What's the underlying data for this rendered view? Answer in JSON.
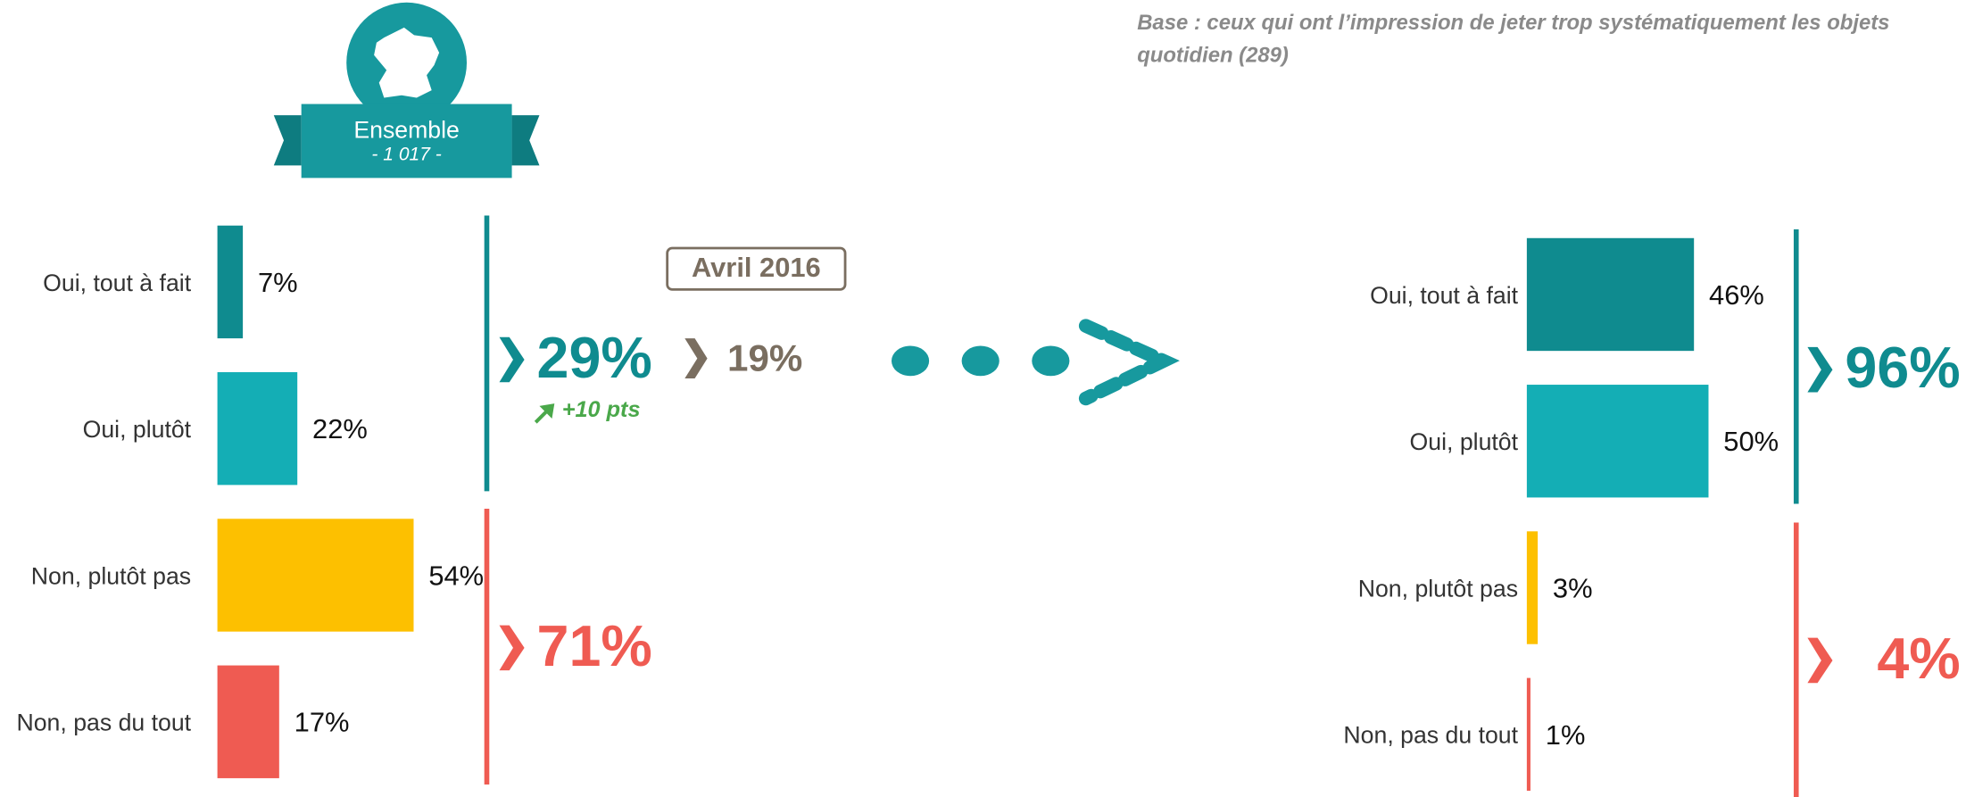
{
  "header": {
    "title": "Ensemble",
    "subtitle": "- 1 017 -"
  },
  "note": {
    "lines": [
      "Base : ceux qui ont l’impression de jeter trop systématiquement les objets",
      "quotidien (289)"
    ]
  },
  "comparison": {
    "label": "Avril 2016",
    "value": "19%",
    "change": "+10 pts"
  },
  "chart_data": [
    {
      "type": "bar",
      "orientation": "horizontal",
      "categories": [
        "Oui, tout à fait",
        "Oui, plutôt",
        "Non, plutôt pas",
        "Non, pas du tout"
      ],
      "values": [
        7,
        22,
        54,
        17
      ],
      "value_labels": [
        "7%",
        "22%",
        "54%",
        "17%"
      ],
      "colors": [
        "#0f8b8f",
        "#14aeb5",
        "#fdc000",
        "#ef5b52"
      ],
      "xlim": [
        0,
        100
      ],
      "summaries": [
        {
          "value": 29,
          "label": "29%",
          "color": "#0f8b8f"
        },
        {
          "value": 71,
          "label": "71%",
          "color": "#ef5b52"
        }
      ]
    },
    {
      "type": "bar",
      "orientation": "horizontal",
      "categories": [
        "Oui, tout à fait",
        "Oui, plutôt",
        "Non, plutôt pas",
        "Non, pas du tout"
      ],
      "values": [
        46,
        50,
        3,
        1
      ],
      "value_labels": [
        "46%",
        "50%",
        "3%",
        "1%"
      ],
      "colors": [
        "#0f8b8f",
        "#14aeb5",
        "#fdc000",
        "#ef5b52"
      ],
      "xlim": [
        0,
        100
      ],
      "summaries": [
        {
          "value": 96,
          "label": "96%",
          "color": "#0f8b8f"
        },
        {
          "value": 4,
          "label": "4%",
          "color": "#ef5b52"
        }
      ]
    }
  ]
}
